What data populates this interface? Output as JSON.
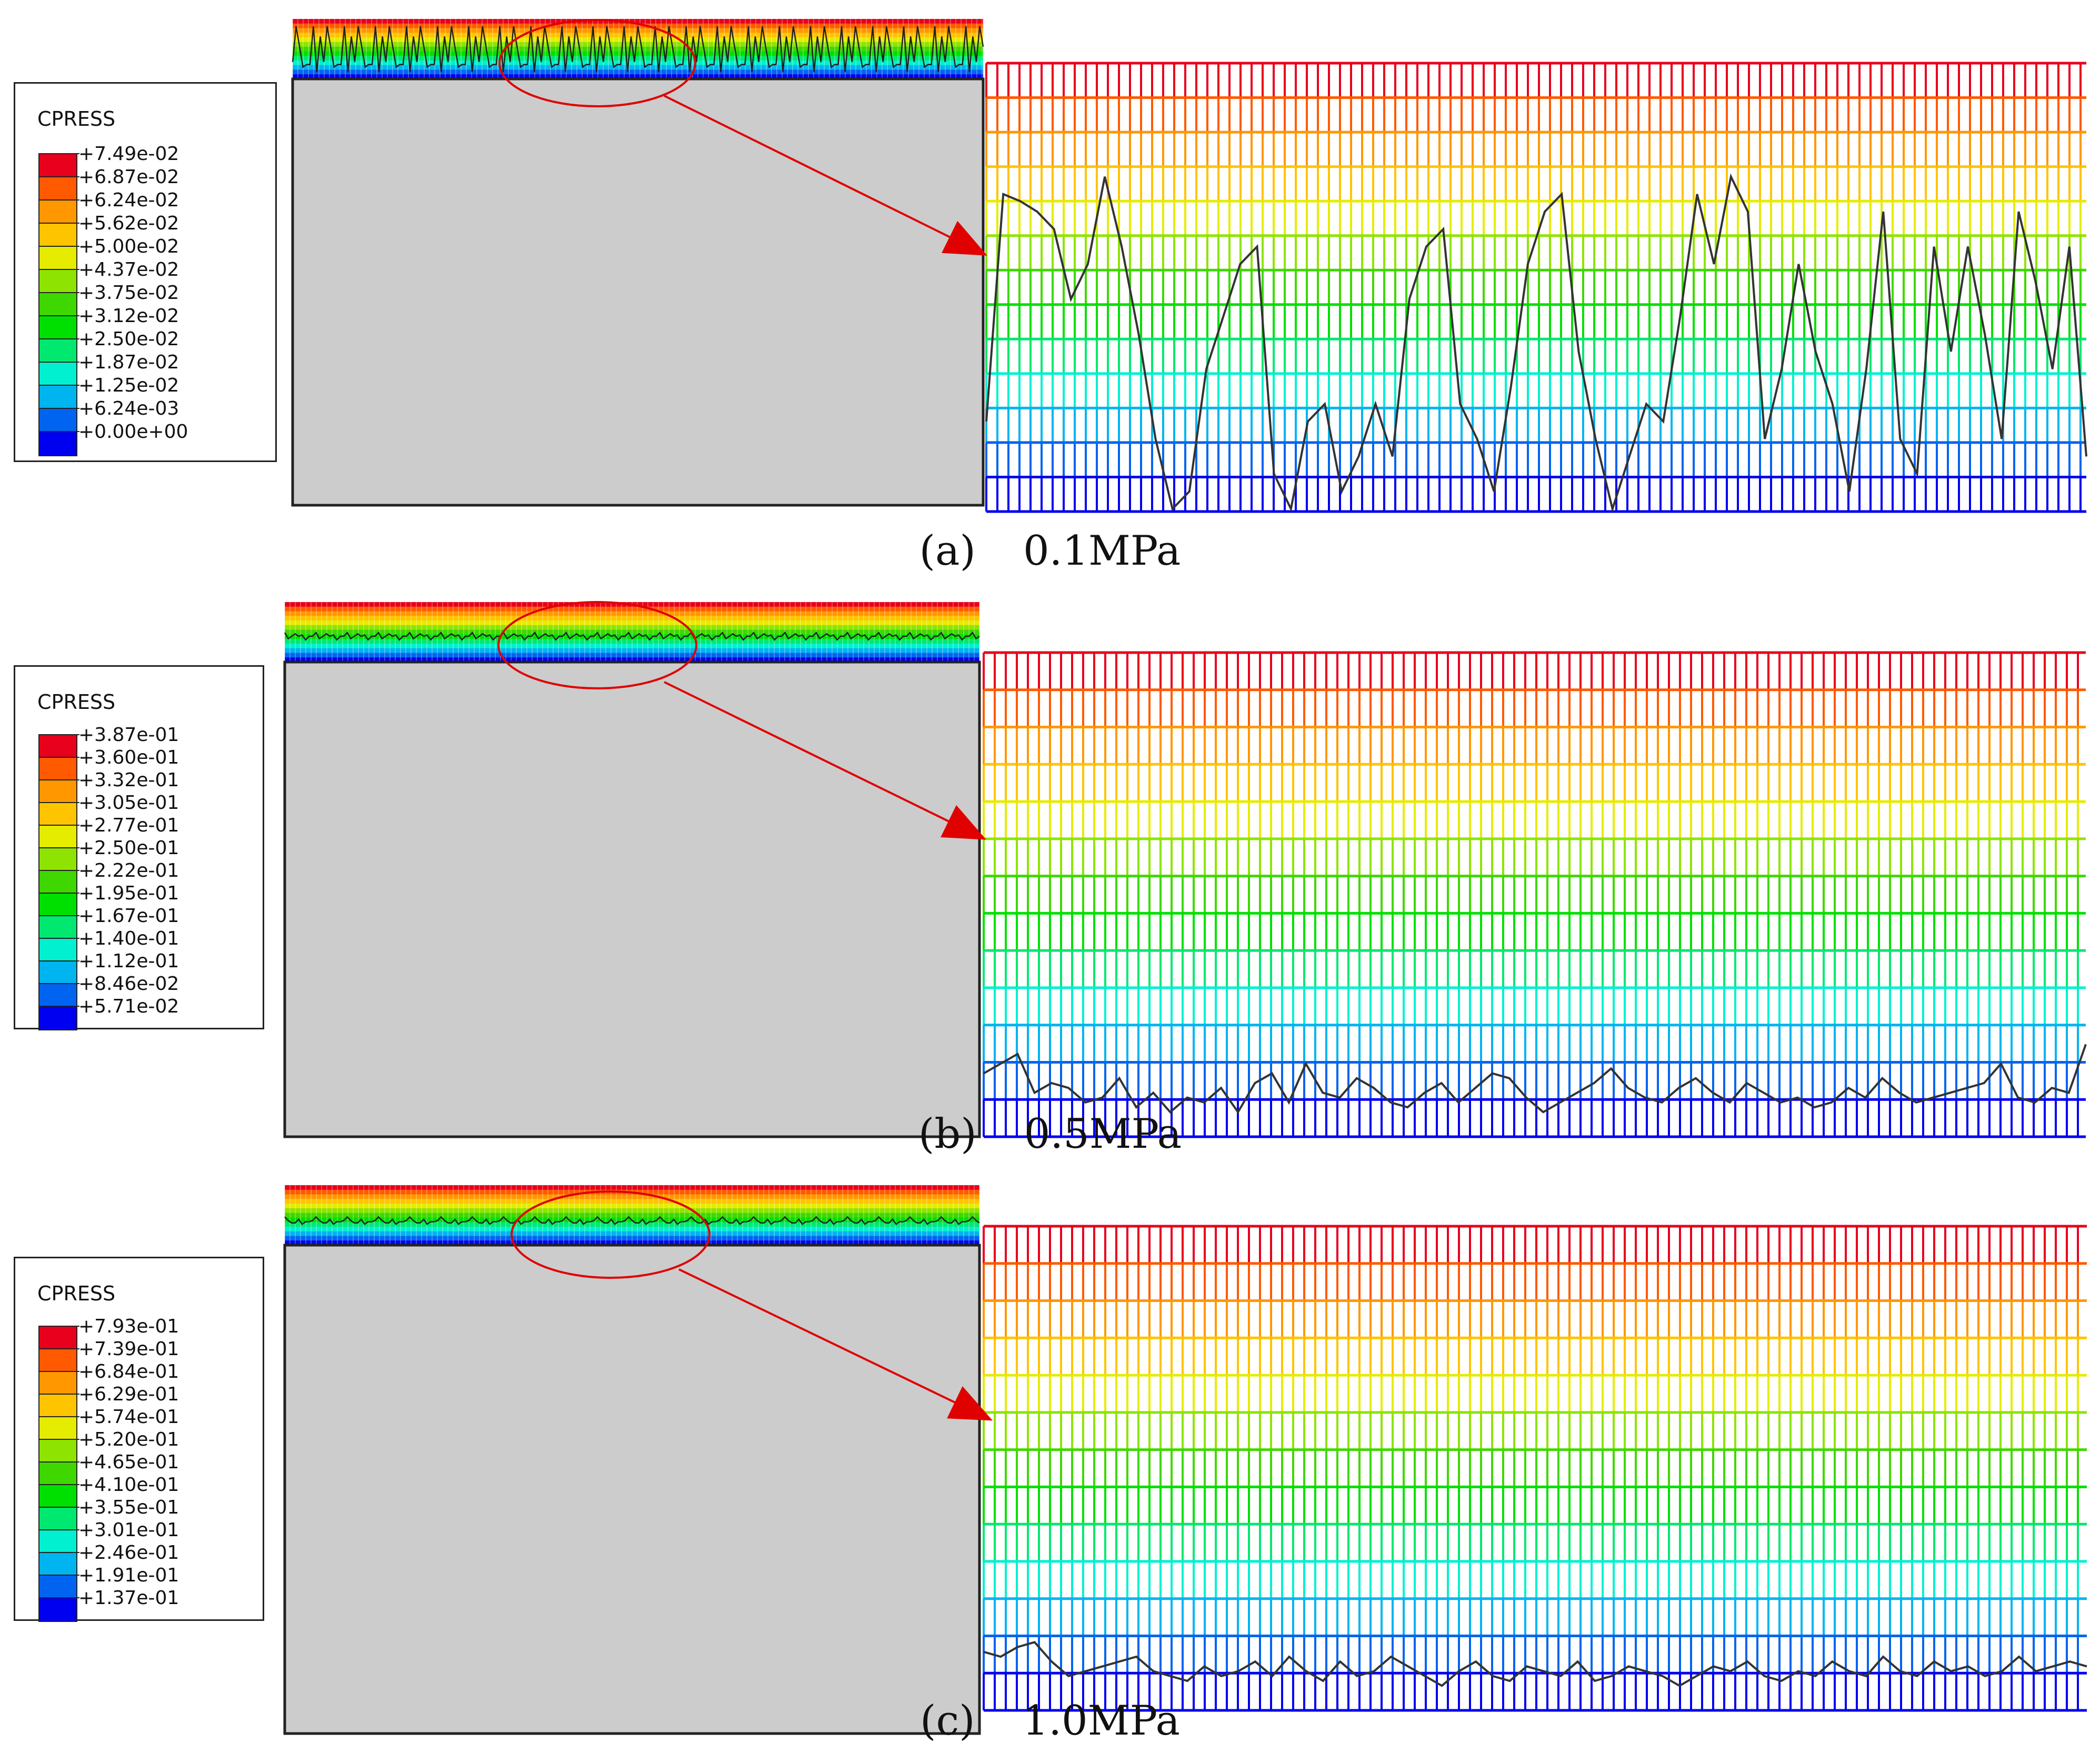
{
  "legend_title": "CPRESS",
  "contour_colors": [
    "#e8001c",
    "#ff5a00",
    "#ff9800",
    "#ffc400",
    "#e6ec00",
    "#8ee400",
    "#3ed800",
    "#00e000",
    "#00e870",
    "#00f0d0",
    "#00b4f0",
    "#0064f0",
    "#0000f0"
  ],
  "panels": [
    {
      "id": "a",
      "caption_letter": "(a)",
      "caption_value": "0.1MPa",
      "legend_values": [
        "+7.49e-02",
        "+6.87e-02",
        "+6.24e-02",
        "+5.62e-02",
        "+5.00e-02",
        "+4.37e-02",
        "+3.75e-02",
        "+3.12e-02",
        "+2.50e-02",
        "+1.87e-02",
        "+1.25e-02",
        "+6.24e-03",
        "+0.00e+00"
      ],
      "profile": [
        0.25,
        0.9,
        0.88,
        0.85,
        0.8,
        0.6,
        0.7,
        0.95,
        0.75,
        0.5,
        0.2,
        0.0,
        0.05,
        0.4,
        0.55,
        0.7,
        0.75,
        0.1,
        0.0,
        0.25,
        0.3,
        0.05,
        0.15,
        0.3,
        0.15,
        0.6,
        0.75,
        0.8,
        0.3,
        0.2,
        0.05,
        0.35,
        0.7,
        0.85,
        0.9,
        0.45,
        0.2,
        0.0,
        0.15,
        0.3,
        0.25,
        0.55,
        0.9,
        0.7,
        0.95,
        0.85,
        0.2,
        0.4,
        0.7,
        0.45,
        0.3,
        0.05,
        0.4,
        0.85,
        0.2,
        0.1,
        0.75,
        0.45,
        0.75,
        0.5,
        0.2,
        0.85,
        0.65,
        0.4,
        0.75,
        0.15
      ]
    },
    {
      "id": "b",
      "caption_letter": "(b)",
      "caption_value": "0.5MPa",
      "legend_values": [
        "+3.87e-01",
        "+3.60e-01",
        "+3.32e-01",
        "+3.05e-01",
        "+2.77e-01",
        "+2.50e-01",
        "+2.22e-01",
        "+1.95e-01",
        "+1.67e-01",
        "+1.40e-01",
        "+1.12e-01",
        "+8.46e-02",
        "+5.71e-02"
      ],
      "profile": [
        0.6,
        0.7,
        0.8,
        0.4,
        0.5,
        0.45,
        0.3,
        0.35,
        0.55,
        0.25,
        0.4,
        0.2,
        0.35,
        0.3,
        0.45,
        0.2,
        0.5,
        0.6,
        0.3,
        0.7,
        0.4,
        0.35,
        0.55,
        0.45,
        0.3,
        0.25,
        0.4,
        0.5,
        0.3,
        0.45,
        0.6,
        0.55,
        0.35,
        0.2,
        0.3,
        0.4,
        0.5,
        0.65,
        0.45,
        0.35,
        0.3,
        0.45,
        0.55,
        0.4,
        0.3,
        0.5,
        0.4,
        0.3,
        0.35,
        0.25,
        0.3,
        0.45,
        0.35,
        0.55,
        0.4,
        0.3,
        0.35,
        0.4,
        0.45,
        0.5,
        0.7,
        0.35,
        0.3,
        0.45,
        0.4,
        0.9
      ]
    },
    {
      "id": "c",
      "caption_letter": "(c)",
      "caption_value": "1.0MPa",
      "legend_values": [
        "+7.93e-01",
        "+7.39e-01",
        "+6.84e-01",
        "+6.29e-01",
        "+5.74e-01",
        "+5.20e-01",
        "+4.65e-01",
        "+4.10e-01",
        "+3.55e-01",
        "+3.01e-01",
        "+2.46e-01",
        "+1.91e-01",
        "+1.37e-01"
      ],
      "profile": [
        0.55,
        0.5,
        0.6,
        0.65,
        0.45,
        0.3,
        0.35,
        0.4,
        0.45,
        0.5,
        0.35,
        0.3,
        0.25,
        0.4,
        0.3,
        0.35,
        0.45,
        0.3,
        0.5,
        0.35,
        0.25,
        0.45,
        0.3,
        0.35,
        0.5,
        0.4,
        0.3,
        0.2,
        0.35,
        0.45,
        0.3,
        0.25,
        0.4,
        0.35,
        0.3,
        0.45,
        0.25,
        0.3,
        0.4,
        0.35,
        0.3,
        0.2,
        0.3,
        0.4,
        0.35,
        0.45,
        0.3,
        0.25,
        0.35,
        0.3,
        0.45,
        0.35,
        0.3,
        0.5,
        0.35,
        0.3,
        0.45,
        0.35,
        0.4,
        0.3,
        0.35,
        0.5,
        0.35,
        0.4,
        0.45,
        0.4
      ]
    }
  ]
}
